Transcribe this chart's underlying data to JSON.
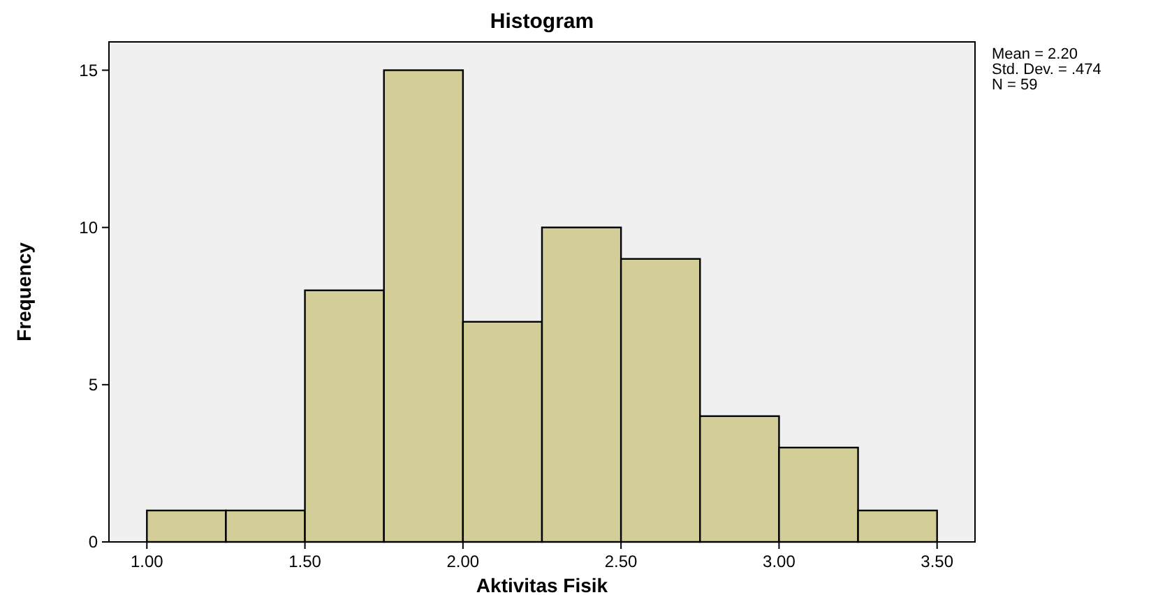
{
  "chart_data": {
    "type": "histogram",
    "title": "Histogram",
    "xlabel": "Aktivitas Fisik",
    "ylabel": "Frequency",
    "bins": [
      1.0,
      1.25,
      1.5,
      1.75,
      2.0,
      2.25,
      2.5,
      2.75,
      3.0,
      3.25,
      3.5
    ],
    "values": [
      1,
      1,
      8,
      15,
      7,
      10,
      9,
      4,
      3,
      1
    ],
    "color": "#d3ce97",
    "xlim": [
      0.88,
      3.62
    ],
    "xticks": [
      {
        "value": 1.0,
        "label": "1.00"
      },
      {
        "value": 1.5,
        "label": "1.50"
      },
      {
        "value": 2.0,
        "label": "2.00"
      },
      {
        "value": 2.5,
        "label": "2.50"
      },
      {
        "value": 3.0,
        "label": "3.00"
      },
      {
        "value": 3.5,
        "label": "3.50"
      }
    ],
    "ylim": [
      0,
      15.9
    ],
    "yticks": [
      0,
      5,
      10,
      15
    ],
    "annotations": [
      "Mean = 2.20",
      "Std. Dev. = .474",
      "N = 59"
    ],
    "grid": false
  }
}
